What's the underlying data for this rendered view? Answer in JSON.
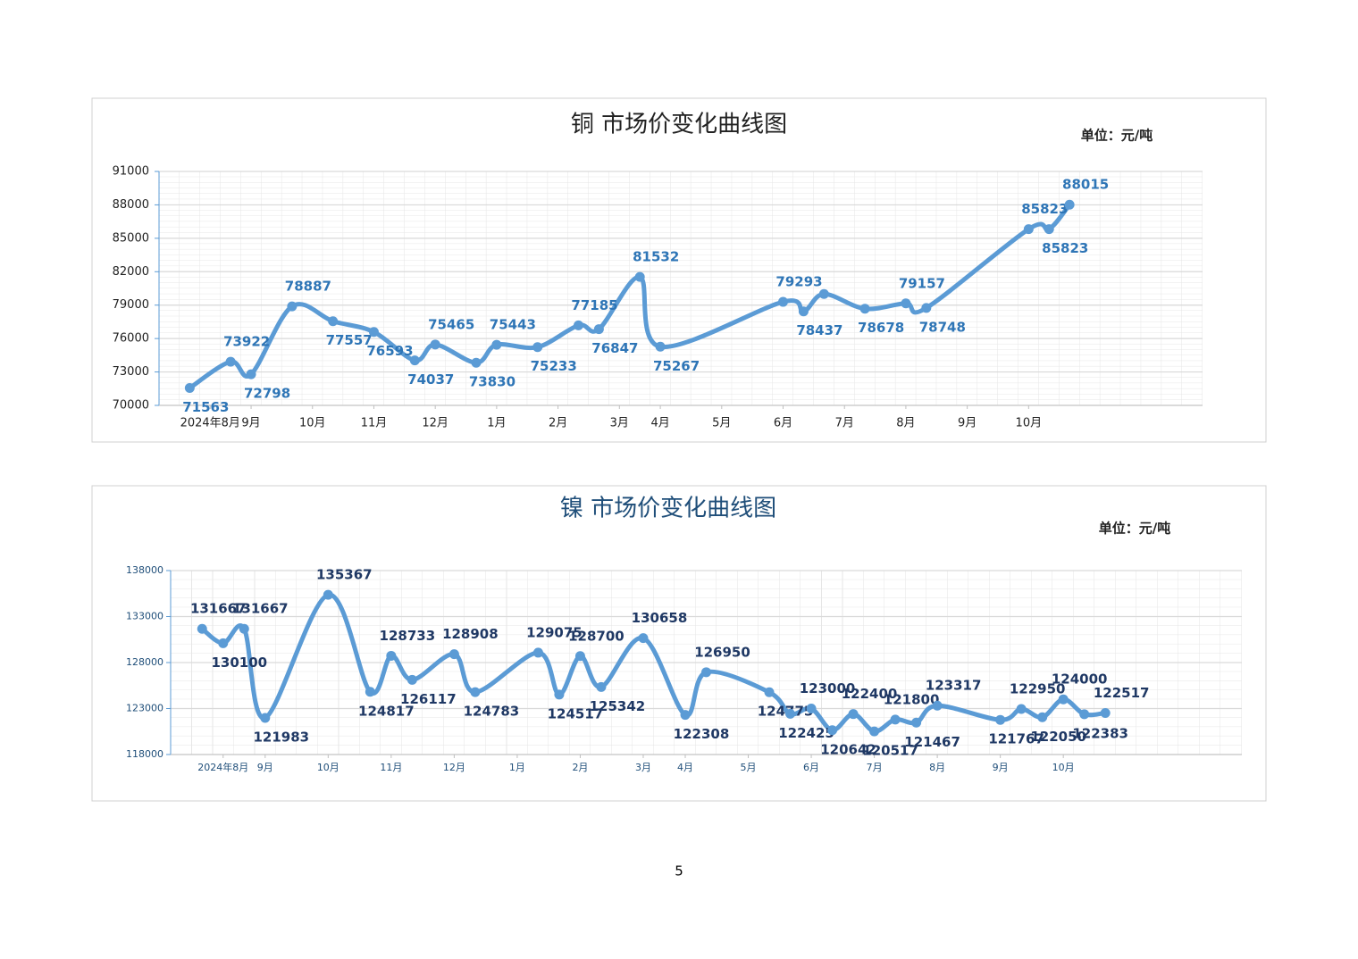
{
  "chart_data": [
    {
      "type": "line",
      "title": "铜  市场价变化曲线图",
      "unit": "单位：元/吨",
      "color": "#5b9bd5",
      "label_color": "#2e75b6",
      "title_color": "#222222",
      "grid": true,
      "x": [
        1,
        3,
        4,
        6,
        8,
        10,
        12,
        13,
        15,
        16,
        18,
        20,
        21,
        23,
        24,
        30,
        31,
        32,
        34,
        36,
        37,
        42,
        43,
        44
      ],
      "values": [
        71563,
        73922,
        72798,
        78887,
        77557,
        76593,
        74037,
        75465,
        73830,
        75443,
        75233,
        77185,
        76847,
        81532,
        75267,
        79293,
        78437,
        80000,
        78678,
        79157,
        78748,
        85823,
        85823,
        88015
      ],
      "value_labels": [
        "71563",
        "73922",
        "72798",
        "78887",
        "77557",
        "76593",
        "74037",
        "75465",
        "73830",
        "75443",
        "75233",
        "77185",
        "76847",
        "81532",
        "75267",
        "79293",
        "78437",
        null,
        "78678",
        "79157",
        "78748",
        "85823",
        "85823",
        "88015"
      ],
      "xlim": [
        -0.5,
        50.5
      ],
      "xticks": [
        {
          "value": 2,
          "label": "2024年8月"
        },
        {
          "value": 4,
          "label": "9月"
        },
        {
          "value": 7,
          "label": "10月"
        },
        {
          "value": 10,
          "label": "11月"
        },
        {
          "value": 13,
          "label": "12月"
        },
        {
          "value": 16,
          "label": "1月"
        },
        {
          "value": 19,
          "label": "2月"
        },
        {
          "value": 22,
          "label": "3月"
        },
        {
          "value": 24,
          "label": "4月"
        },
        {
          "value": 27,
          "label": "5月"
        },
        {
          "value": 30,
          "label": "6月"
        },
        {
          "value": 33,
          "label": "7月"
        },
        {
          "value": 36,
          "label": "8月"
        },
        {
          "value": 39,
          "label": "9月"
        },
        {
          "value": 42,
          "label": "10月"
        }
      ],
      "ylim": [
        70000,
        91000
      ],
      "yticks": [
        70000,
        73000,
        76000,
        79000,
        82000,
        85000,
        88000,
        91000
      ]
    },
    {
      "type": "line",
      "title": "镍  市场价变化曲线图",
      "unit": "单位：元/吨",
      "color": "#5b9bd5",
      "label_color": "#1f3864",
      "title_color": "#1f4e79",
      "grid": true,
      "x": [
        1,
        2,
        3,
        4,
        7,
        9,
        10,
        11,
        13,
        14,
        17,
        18,
        19,
        20,
        22,
        24,
        25,
        28,
        29,
        30,
        31,
        32,
        33,
        34,
        35,
        36,
        39,
        40,
        41,
        42,
        43,
        44
      ],
      "values": [
        131667,
        130100,
        131667,
        121983,
        135367,
        124817,
        128733,
        126117,
        128908,
        124783,
        129075,
        124517,
        128700,
        125342,
        130658,
        122308,
        126950,
        124775,
        122425,
        123000,
        120642,
        122400,
        120517,
        121800,
        121467,
        123317,
        121767,
        122950,
        122050,
        124000,
        122383,
        122517
      ],
      "value_labels": [
        "131667",
        "130100",
        "131667",
        "121983",
        "135367",
        "124817",
        "128733",
        "126117",
        "128908",
        "124783",
        "129075",
        "124517",
        "128700",
        "125342",
        "130658",
        "122308",
        "126950",
        "124775",
        "122425",
        "123000",
        "120642",
        "122400",
        "120517",
        "121800",
        "121467",
        "123317",
        "121767",
        "122950",
        "122050",
        "124000",
        "122383",
        "122517"
      ],
      "xlim": [
        -0.5,
        50.5
      ],
      "xticks": [
        {
          "value": 2,
          "label": "2024年8月"
        },
        {
          "value": 4,
          "label": "9月"
        },
        {
          "value": 7,
          "label": "10月"
        },
        {
          "value": 10,
          "label": "11月"
        },
        {
          "value": 13,
          "label": "12月"
        },
        {
          "value": 16,
          "label": "1月"
        },
        {
          "value": 19,
          "label": "2月"
        },
        {
          "value": 22,
          "label": "3月"
        },
        {
          "value": 24,
          "label": "4月"
        },
        {
          "value": 27,
          "label": "5月"
        },
        {
          "value": 30,
          "label": "6月"
        },
        {
          "value": 33,
          "label": "7月"
        },
        {
          "value": 36,
          "label": "8月"
        },
        {
          "value": 39,
          "label": "9月"
        },
        {
          "value": 42,
          "label": "10月"
        }
      ],
      "ylim": [
        118000,
        138000
      ],
      "yticks": [
        118000,
        123000,
        128000,
        133000,
        138000
      ]
    }
  ],
  "page_number": "5"
}
